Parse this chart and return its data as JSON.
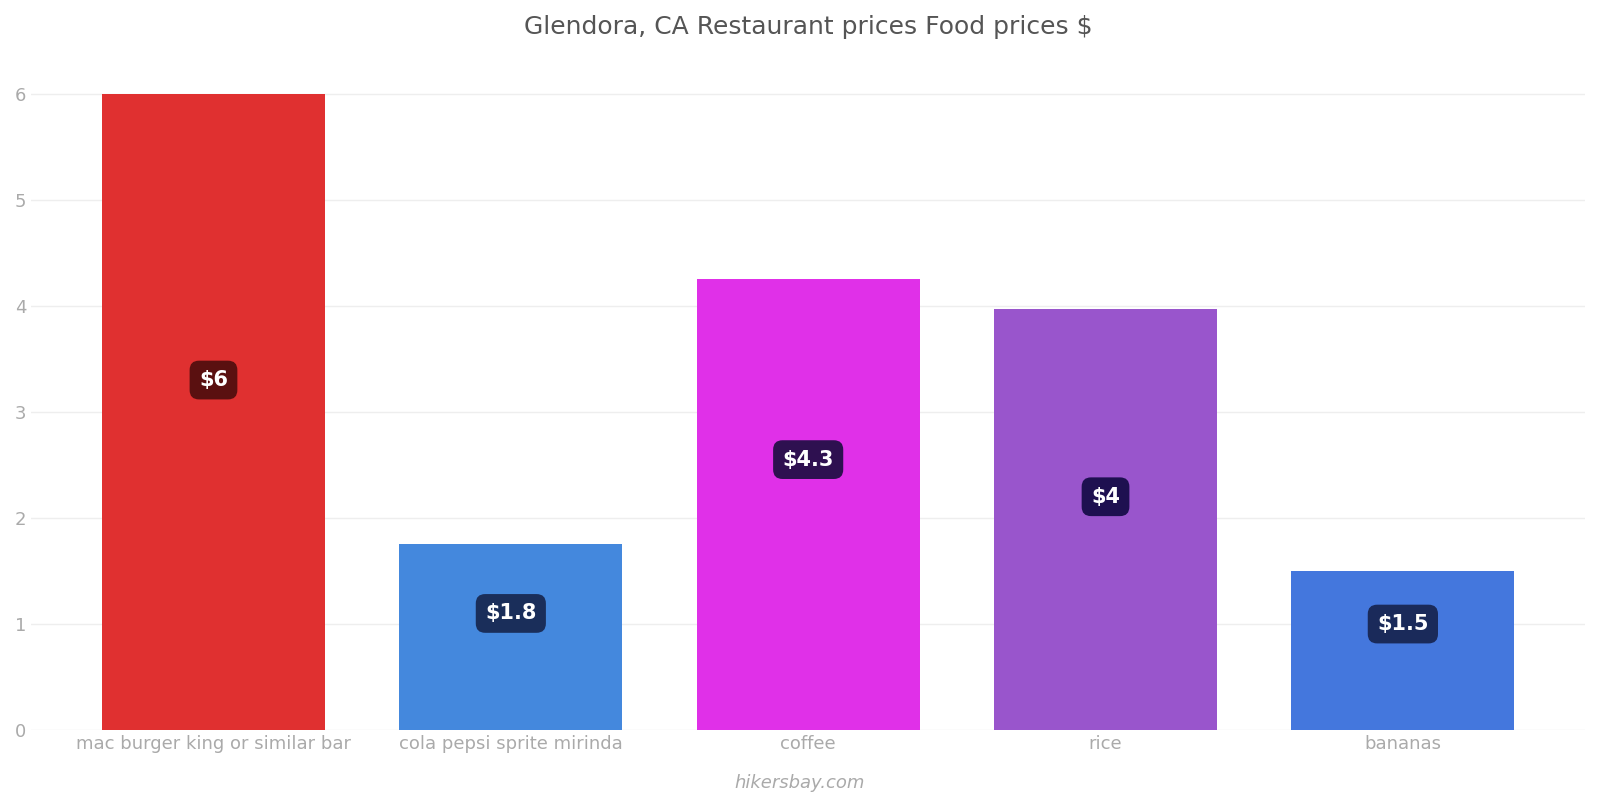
{
  "title": "Glendora, CA Restaurant prices Food prices $",
  "categories": [
    "mac burger king or similar bar",
    "cola pepsi sprite mirinda",
    "coffee",
    "rice",
    "bananas"
  ],
  "values": [
    6.0,
    1.75,
    4.25,
    3.97,
    1.5
  ],
  "labels": [
    "$6",
    "$1.8",
    "$4.3",
    "$4",
    "$1.5"
  ],
  "bar_colors": [
    "#e03030",
    "#4488dd",
    "#e030e8",
    "#9955cc",
    "#4477dd"
  ],
  "label_box_colors": [
    "#5a1010",
    "#1a2e5a",
    "#2e1050",
    "#1e1050",
    "#1a2a5a"
  ],
  "label_y_positions": [
    3.3,
    1.1,
    2.55,
    2.2,
    1.0
  ],
  "ylabel_ticks": [
    0,
    1,
    2,
    3,
    4,
    5,
    6
  ],
  "ylim": [
    0,
    6.3
  ],
  "background_color": "#ffffff",
  "grid_color": "#eeeeee",
  "title_color": "#555555",
  "tick_color": "#aaaaaa",
  "watermark": "hikersbay.com",
  "figsize": [
    16,
    8
  ],
  "dpi": 100,
  "bar_width": 0.75
}
